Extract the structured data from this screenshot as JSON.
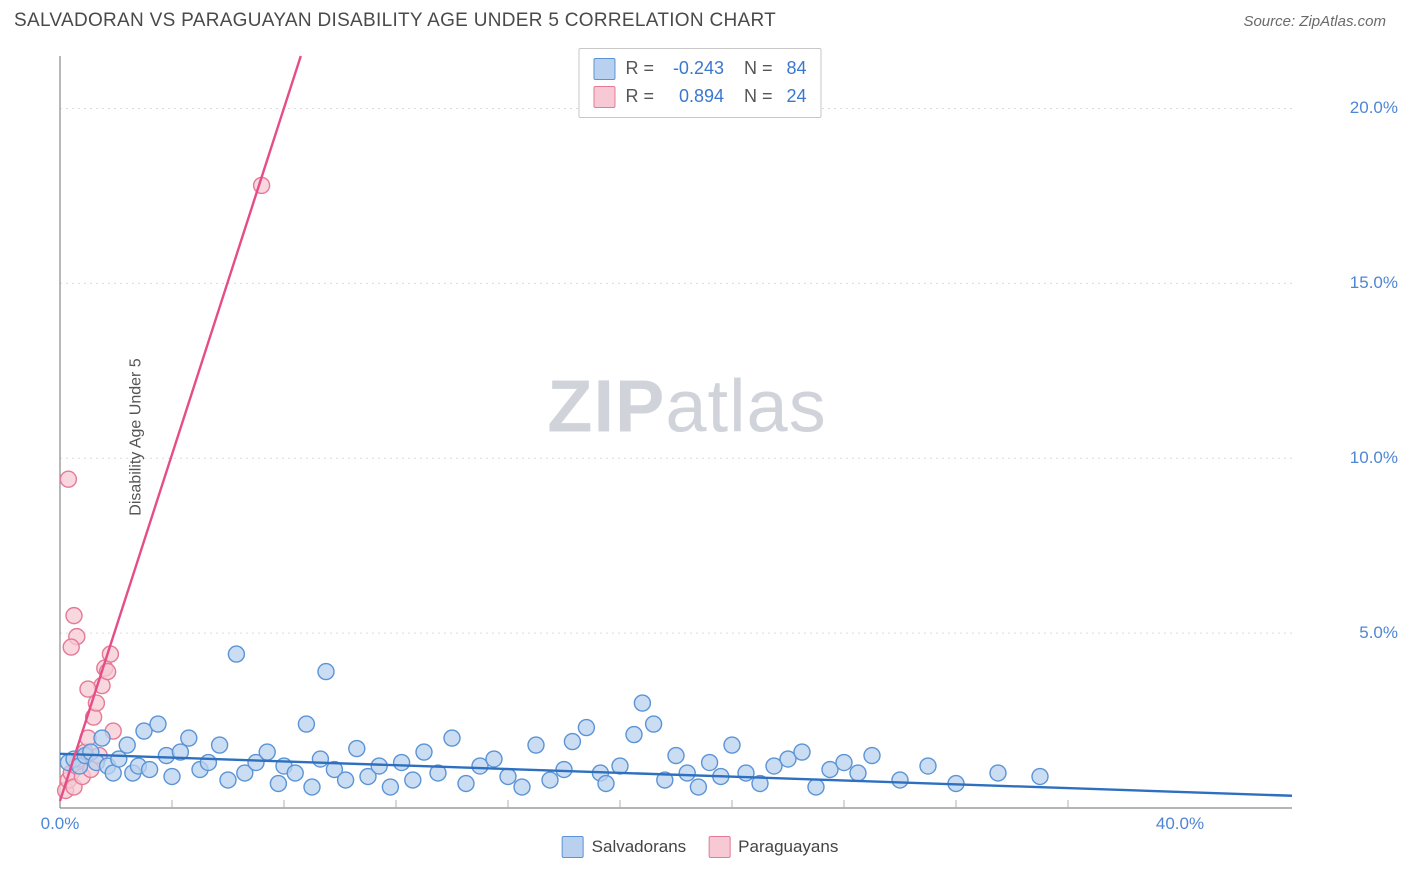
{
  "header": {
    "title": "SALVADORAN VS PARAGUAYAN DISABILITY AGE UNDER 5 CORRELATION CHART",
    "source": "Source: ZipAtlas.com"
  },
  "chart": {
    "type": "scatter",
    "ylabel": "Disability Age Under 5",
    "watermark_bold": "ZIP",
    "watermark_light": "atlas",
    "background_color": "#ffffff",
    "grid_color": "#dcdcdc",
    "axis_color": "#888888",
    "tick_color": "#b0b0b0",
    "tick_label_color": "#4e86d6",
    "xlim": [
      0,
      44
    ],
    "ylim": [
      0,
      21.5
    ],
    "xticks": [
      0,
      40
    ],
    "xtick_labels": [
      "0.0%",
      "40.0%"
    ],
    "xtick_minor": [
      4,
      8,
      12,
      16,
      20,
      24,
      28,
      32,
      36
    ],
    "yticks": [
      5,
      10,
      15,
      20
    ],
    "ytick_labels": [
      "5.0%",
      "10.0%",
      "15.0%",
      "20.0%"
    ],
    "marker_radius": 8,
    "marker_stroke_width": 1.4,
    "trend_line_width": 2.4,
    "series": {
      "salvadorans": {
        "label": "Salvadorans",
        "fill": "#b9d1ee",
        "stroke": "#5b94d6",
        "line_color": "#2e6fc0",
        "r_value": "-0.243",
        "n_value": "84",
        "trend": {
          "x1": 0,
          "y1": 1.55,
          "x2": 44,
          "y2": 0.35
        },
        "points": [
          [
            0.3,
            1.3
          ],
          [
            0.5,
            1.4
          ],
          [
            0.7,
            1.2
          ],
          [
            0.9,
            1.5
          ],
          [
            1.1,
            1.6
          ],
          [
            1.3,
            1.3
          ],
          [
            1.5,
            2.0
          ],
          [
            1.7,
            1.2
          ],
          [
            1.9,
            1.0
          ],
          [
            2.1,
            1.4
          ],
          [
            2.4,
            1.8
          ],
          [
            2.6,
            1.0
          ],
          [
            2.8,
            1.2
          ],
          [
            3.0,
            2.2
          ],
          [
            3.2,
            1.1
          ],
          [
            3.5,
            2.4
          ],
          [
            3.8,
            1.5
          ],
          [
            4.0,
            0.9
          ],
          [
            4.3,
            1.6
          ],
          [
            4.6,
            2.0
          ],
          [
            5.0,
            1.1
          ],
          [
            5.3,
            1.3
          ],
          [
            5.7,
            1.8
          ],
          [
            6.0,
            0.8
          ],
          [
            6.3,
            4.4
          ],
          [
            6.6,
            1.0
          ],
          [
            7.0,
            1.3
          ],
          [
            7.4,
            1.6
          ],
          [
            7.8,
            0.7
          ],
          [
            8.0,
            1.2
          ],
          [
            8.4,
            1.0
          ],
          [
            8.8,
            2.4
          ],
          [
            9.0,
            0.6
          ],
          [
            9.3,
            1.4
          ],
          [
            9.5,
            3.9
          ],
          [
            9.8,
            1.1
          ],
          [
            10.2,
            0.8
          ],
          [
            10.6,
            1.7
          ],
          [
            11.0,
            0.9
          ],
          [
            11.4,
            1.2
          ],
          [
            11.8,
            0.6
          ],
          [
            12.2,
            1.3
          ],
          [
            12.6,
            0.8
          ],
          [
            13.0,
            1.6
          ],
          [
            13.5,
            1.0
          ],
          [
            14.0,
            2.0
          ],
          [
            14.5,
            0.7
          ],
          [
            15.0,
            1.2
          ],
          [
            15.5,
            1.4
          ],
          [
            16.0,
            0.9
          ],
          [
            16.5,
            0.6
          ],
          [
            17.0,
            1.8
          ],
          [
            17.5,
            0.8
          ],
          [
            18.0,
            1.1
          ],
          [
            18.3,
            1.9
          ],
          [
            18.8,
            2.3
          ],
          [
            19.3,
            1.0
          ],
          [
            19.5,
            0.7
          ],
          [
            20.0,
            1.2
          ],
          [
            20.5,
            2.1
          ],
          [
            20.8,
            3.0
          ],
          [
            21.2,
            2.4
          ],
          [
            21.6,
            0.8
          ],
          [
            22.0,
            1.5
          ],
          [
            22.4,
            1.0
          ],
          [
            22.8,
            0.6
          ],
          [
            23.2,
            1.3
          ],
          [
            23.6,
            0.9
          ],
          [
            24.0,
            1.8
          ],
          [
            24.5,
            1.0
          ],
          [
            25.0,
            0.7
          ],
          [
            25.5,
            1.2
          ],
          [
            26.0,
            1.4
          ],
          [
            26.5,
            1.6
          ],
          [
            27.0,
            0.6
          ],
          [
            27.5,
            1.1
          ],
          [
            28.0,
            1.3
          ],
          [
            28.5,
            1.0
          ],
          [
            29.0,
            1.5
          ],
          [
            30.0,
            0.8
          ],
          [
            31.0,
            1.2
          ],
          [
            32.0,
            0.7
          ],
          [
            33.5,
            1.0
          ],
          [
            35.0,
            0.9
          ]
        ]
      },
      "paraguayans": {
        "label": "Paraguayans",
        "fill": "#f6c9d4",
        "stroke": "#e57a97",
        "line_color": "#e64d87",
        "r_value": "0.894",
        "n_value": "24",
        "trend": {
          "x1": 0,
          "y1": 0.2,
          "x2": 8.6,
          "y2": 21.5
        },
        "points": [
          [
            0.2,
            0.5
          ],
          [
            0.3,
            0.8
          ],
          [
            0.4,
            1.0
          ],
          [
            0.5,
            0.6
          ],
          [
            0.6,
            1.2
          ],
          [
            0.7,
            1.4
          ],
          [
            0.8,
            0.9
          ],
          [
            0.9,
            1.6
          ],
          [
            1.0,
            2.0
          ],
          [
            1.1,
            1.1
          ],
          [
            1.2,
            2.6
          ],
          [
            1.3,
            3.0
          ],
          [
            1.4,
            1.5
          ],
          [
            1.5,
            3.5
          ],
          [
            1.6,
            4.0
          ],
          [
            1.7,
            3.9
          ],
          [
            1.8,
            4.4
          ],
          [
            0.6,
            4.9
          ],
          [
            0.5,
            5.5
          ],
          [
            0.4,
            4.6
          ],
          [
            0.3,
            9.4
          ],
          [
            1.9,
            2.2
          ],
          [
            7.2,
            17.8
          ],
          [
            1.0,
            3.4
          ]
        ]
      }
    }
  }
}
